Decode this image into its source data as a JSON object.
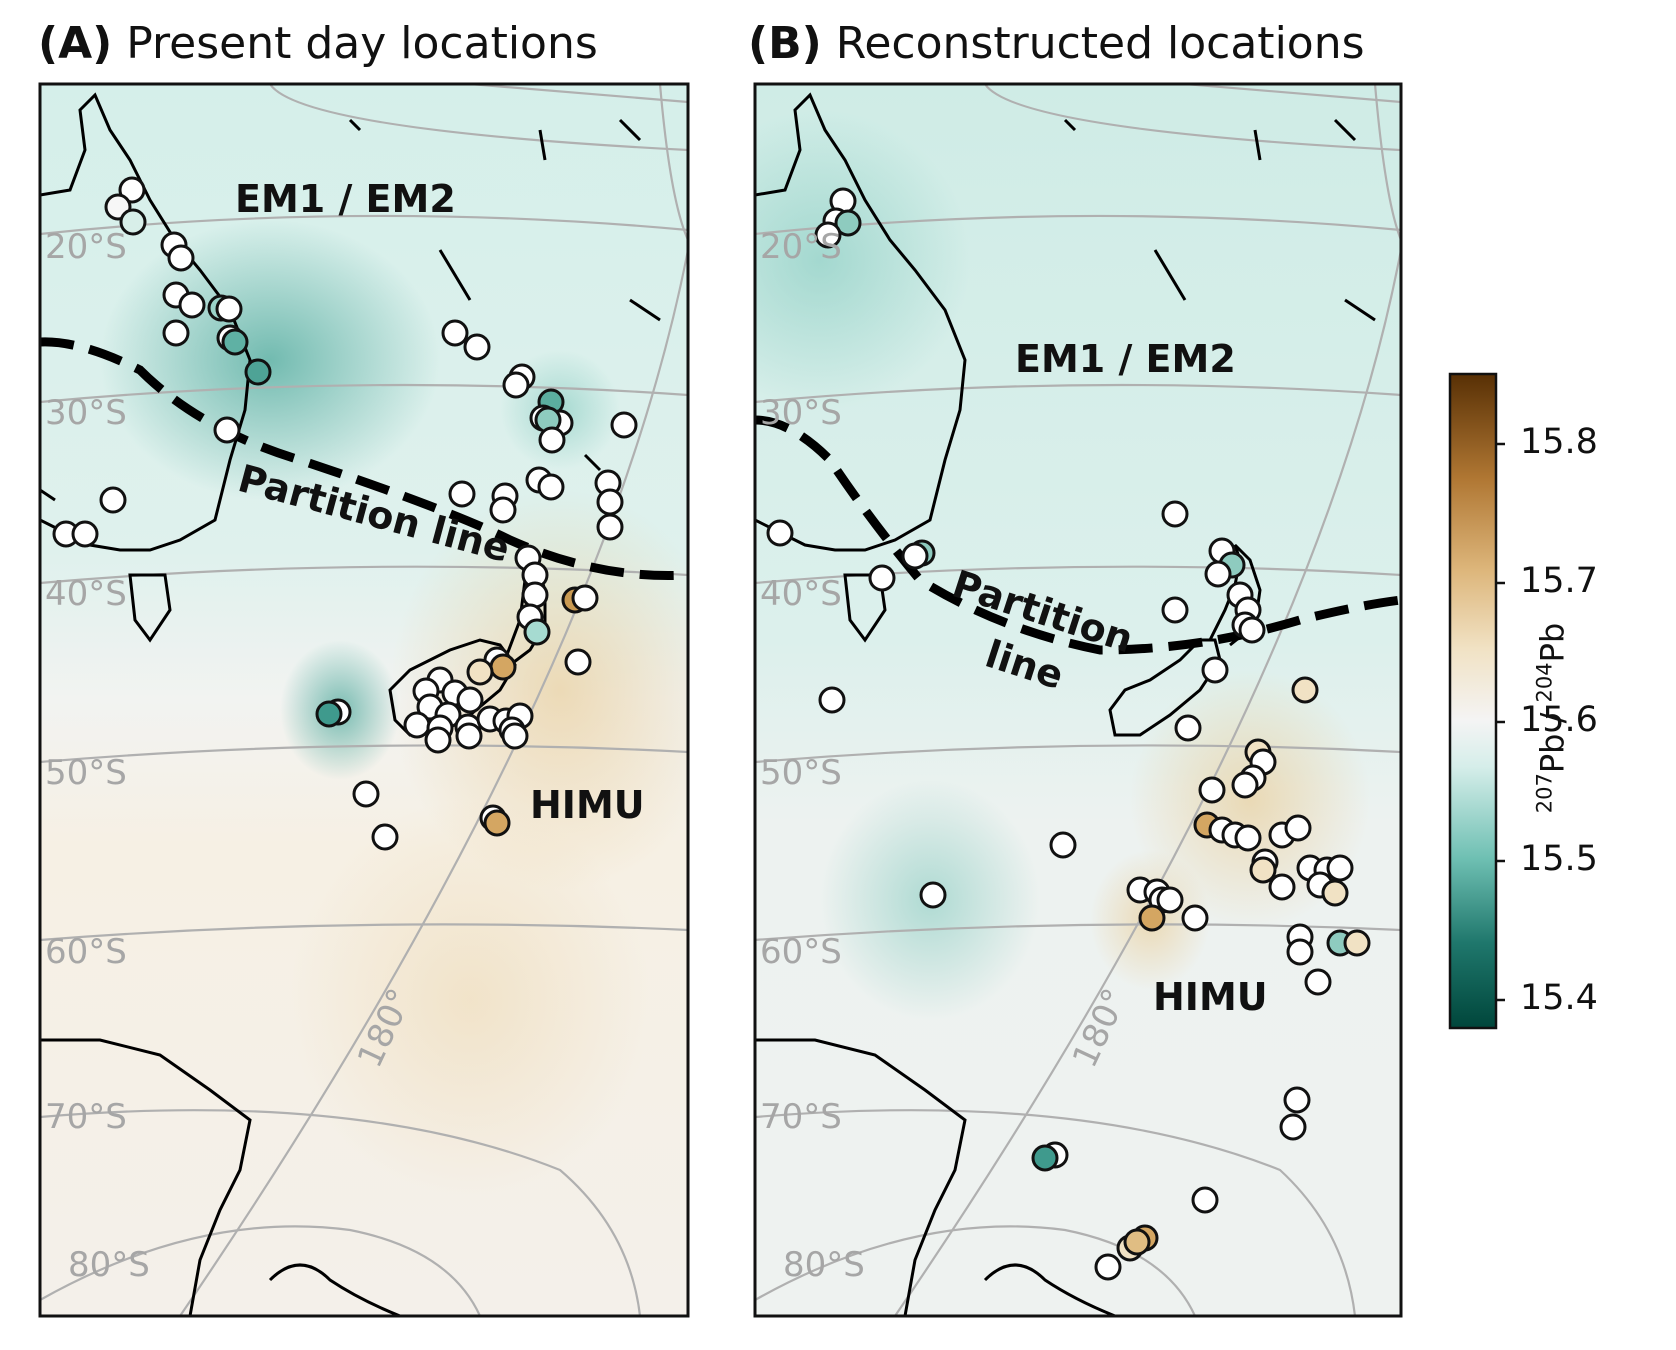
{
  "panels": [
    {
      "letter": "(A)",
      "title": "Present day locations",
      "region_labels": [
        "EM1 / EM2",
        "HIMU"
      ],
      "partition_label": "Partition line",
      "lat_labels": [
        "20°S",
        "30°S",
        "40°S",
        "50°S",
        "60°S",
        "70°S",
        "80°S"
      ],
      "lon_label": "180°"
    },
    {
      "letter": "(B)",
      "title": "Reconstructed locations",
      "region_labels": [
        "EM1 / EM2",
        "HIMU"
      ],
      "partition_label_lines": [
        "Partition",
        "line"
      ],
      "lat_labels": [
        "20°S",
        "30°S",
        "40°S",
        "50°S",
        "60°S",
        "70°S",
        "80°S"
      ],
      "lon_label": "180°"
    }
  ],
  "colorbar": {
    "label_parts": [
      "207",
      "Pb / ",
      "204",
      "Pb"
    ],
    "ticks": [
      "15.4",
      "15.5",
      "15.6",
      "15.7",
      "15.8"
    ],
    "range": [
      15.38,
      15.85
    ],
    "colors": [
      "#00463b",
      "#3b9a8e",
      "#a8ddd2",
      "#f2f2f2",
      "#e3c38d",
      "#b8823a",
      "#5a3006"
    ]
  },
  "colors": {
    "em_tint": "#bfe6df",
    "himu_tint": "#f3dfb8",
    "graticule": "#b0b0b0",
    "coast": "#000000"
  }
}
